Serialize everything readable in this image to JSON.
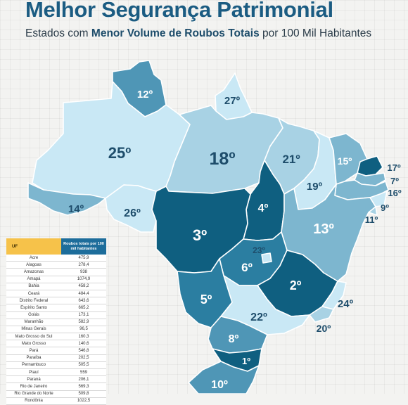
{
  "header": {
    "title": "Melhor Segurança Patrimonial",
    "subtitle_prefix": "Estados com ",
    "subtitle_bold": "Menor Volume de Roubos Totais",
    "subtitle_suffix": " por 100 Mil Habitantes"
  },
  "table": {
    "col_state": "UF",
    "col_value": "Roubos totais por 100 mil habitantes",
    "rows": [
      {
        "state": "Acre",
        "value": "475,9"
      },
      {
        "state": "Alagoas",
        "value": "278,4"
      },
      {
        "state": "Amazonas",
        "value": "938"
      },
      {
        "state": "Amapá",
        "value": "1074,9"
      },
      {
        "state": "Bahia",
        "value": "458,2"
      },
      {
        "state": "Ceará",
        "value": "484,4"
      },
      {
        "state": "Distrito Federal",
        "value": "643,6"
      },
      {
        "state": "Espírito Santo",
        "value": "665,2"
      },
      {
        "state": "Goiás",
        "value": "173,1"
      },
      {
        "state": "Maranhão",
        "value": "582,9"
      },
      {
        "state": "Minas Gerais",
        "value": "96,5"
      },
      {
        "state": "Mato Grosso do Sul",
        "value": "160,3"
      },
      {
        "state": "Mato Grosso",
        "value": "140,6"
      },
      {
        "state": "Pará",
        "value": "546,8"
      },
      {
        "state": "Paraíba",
        "value": "202,5"
      },
      {
        "state": "Pernambuco",
        "value": "505,5"
      },
      {
        "state": "Piauí",
        "value": "559"
      },
      {
        "state": "Paraná",
        "value": "206,1"
      },
      {
        "state": "Rio de Janeiro",
        "value": "569,3"
      },
      {
        "state": "Rio Grande do Norte",
        "value": "509,8"
      },
      {
        "state": "Rondônia",
        "value": "1022,5"
      }
    ]
  },
  "map": {
    "ranks": {
      "RR": "12º",
      "AP": "27º",
      "AM": "25º",
      "PA": "18º",
      "MA": "21º",
      "CE": "15º",
      "RN": "17º",
      "PB": "7º",
      "PE": "16º",
      "AL": "9º",
      "SE": "11º",
      "PI": "19º",
      "AC": "14º",
      "RO": "26º",
      "TO": "4º",
      "BA": "13º",
      "MT": "3º",
      "DF": "23º",
      "GO": "6º",
      "MG": "2º",
      "ES": "24º",
      "MS": "5º",
      "SP": "22º",
      "RJ": "20º",
      "PR": "8º",
      "SC": "1º",
      "RS": "10º"
    },
    "colors": {
      "lightest": "#c9e8f5",
      "light": "#a8d2e4",
      "mid": "#7db6cf",
      "midDark": "#4f96b6",
      "dark": "#2b7ea1",
      "darkest": "#0f5f80"
    }
  }
}
